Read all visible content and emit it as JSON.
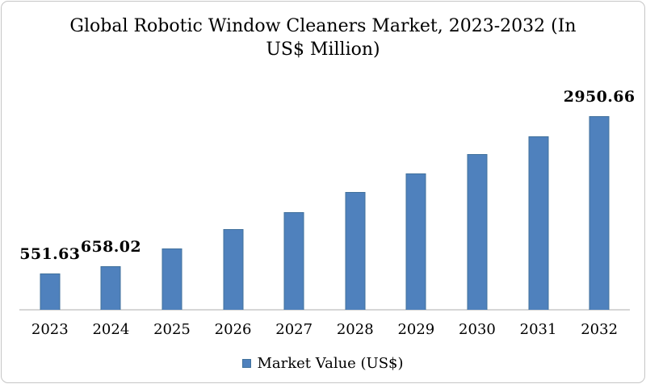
{
  "title": "Global Robotic Window Cleaners Market, 2023-2032 (In US$ Million)",
  "legend": {
    "label": "Market Value (US$)"
  },
  "colors": {
    "bar": "#4f81bd",
    "bar_border": "#41719c",
    "axis_line": "#d6d6d6",
    "card_border": "#c5c5c5",
    "text": "#000000"
  },
  "chart_data": {
    "type": "bar",
    "title": "Global Robotic Window Cleaners Market, 2023-2032 (In US$ Million)",
    "categories": [
      "2023",
      "2024",
      "2025",
      "2026",
      "2027",
      "2028",
      "2029",
      "2030",
      "2031",
      "2032"
    ],
    "series": [
      {
        "name": "Market Value (US$)",
        "values": [
          551.63,
          658.02,
          934,
          1224,
          1487,
          1790,
          2081,
          2371,
          2647,
          2950.66
        ]
      }
    ],
    "data_labels": [
      {
        "category": "2023",
        "text": "551.63"
      },
      {
        "category": "2024",
        "text": "658.02"
      },
      {
        "category": "2032",
        "text": "2950.66"
      }
    ],
    "xlabel": "",
    "ylabel": "",
    "ylim": [
      0,
      3000
    ],
    "grid": false,
    "y_axis_visible": false,
    "legend_position": "bottom"
  }
}
